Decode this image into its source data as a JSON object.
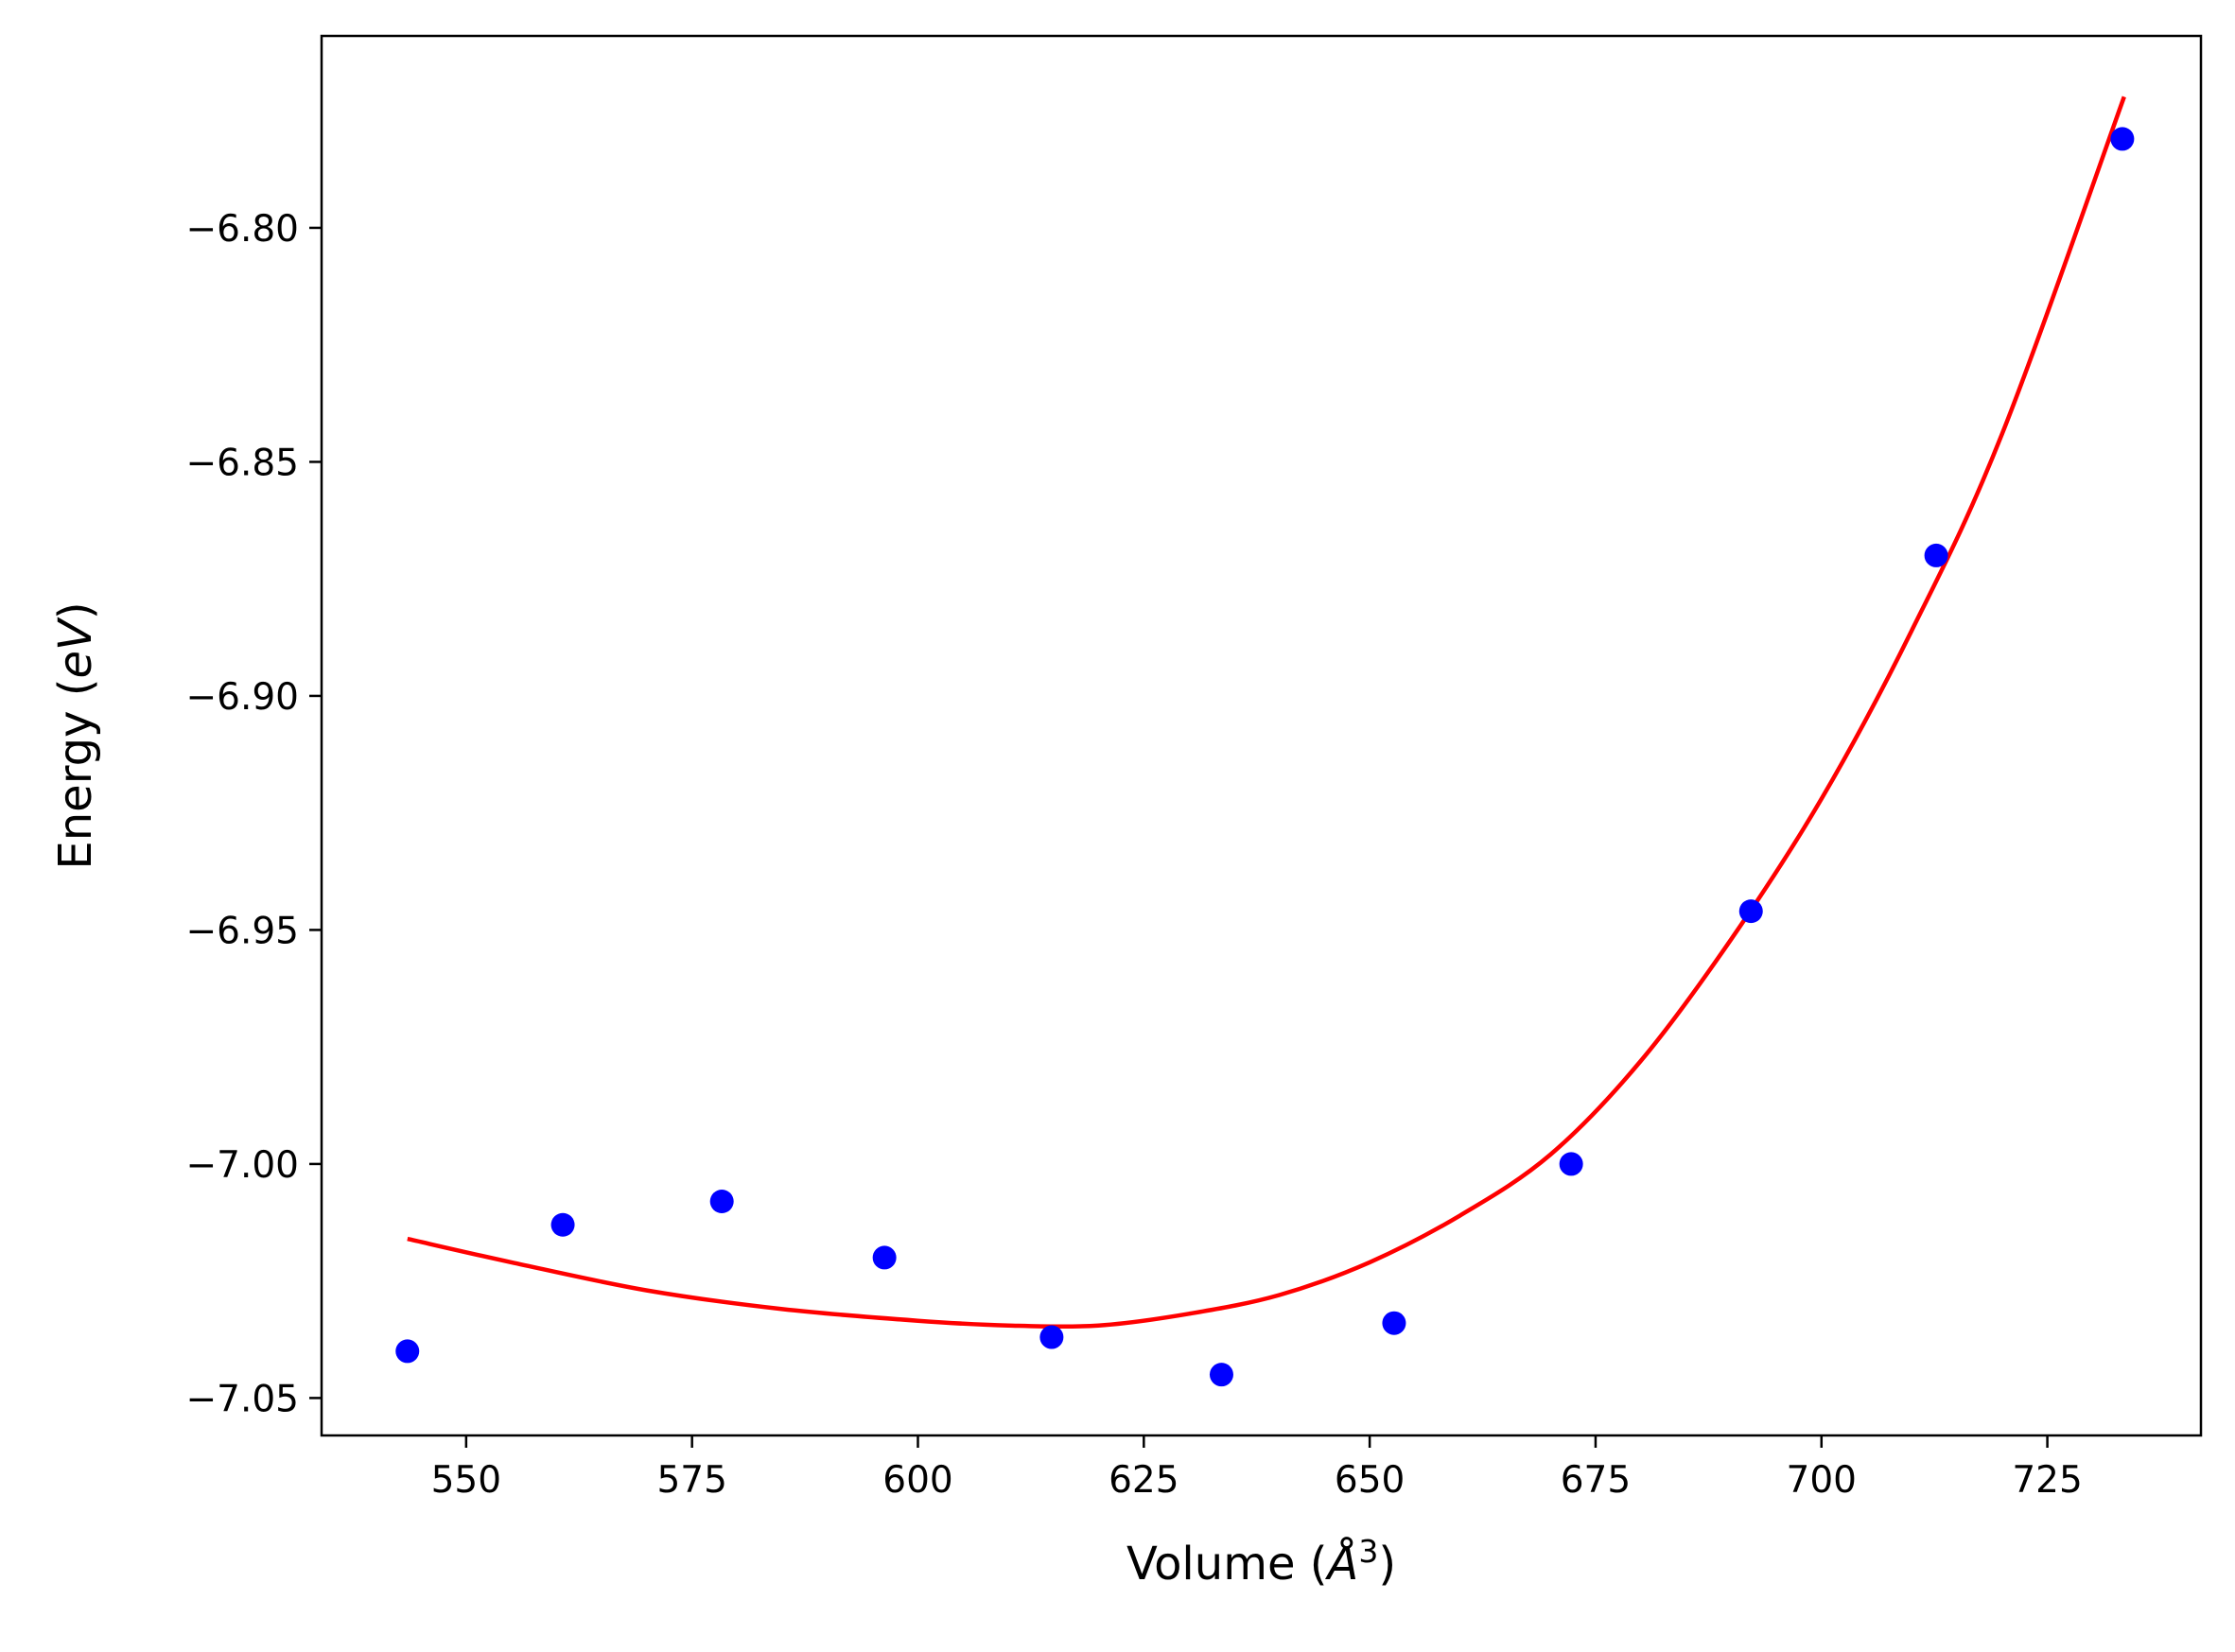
{
  "chart_data": {
    "type": "scatter",
    "xlabel": "Volume (Å³)",
    "xlabel_parts": {
      "prefix": "Volume (",
      "symbol": "Å",
      "exponent": "3",
      "suffix": ")"
    },
    "ylabel": "Energy (eV)",
    "ylabel_parts": {
      "prefix": "Energy (",
      "symbol": "eV",
      "suffix": ")"
    },
    "xlim": [
      534,
      742
    ],
    "ylim": [
      -7.058,
      -6.759
    ],
    "x_ticks": [
      550,
      575,
      600,
      625,
      650,
      675,
      700,
      725
    ],
    "x_tick_labels": [
      "550",
      "575",
      "600",
      "625",
      "650",
      "675",
      "700",
      "725"
    ],
    "y_ticks": [
      -6.8,
      -6.85,
      -6.9,
      -6.95,
      -7.0,
      -7.05
    ],
    "y_tick_labels": [
      "−6.80",
      "−6.85",
      "−6.90",
      "−6.95",
      "−7.00",
      "−7.05"
    ],
    "grid": false,
    "series": [
      {
        "kind": "scatter",
        "color": "#0000ff",
        "x": [
          543.5,
          560.7,
          578.3,
          596.3,
          614.8,
          633.6,
          652.7,
          672.3,
          692.2,
          712.7,
          733.3
        ],
        "y": [
          -7.04,
          -7.013,
          -7.008,
          -7.02,
          -7.037,
          -7.045,
          -7.034,
          -7.0,
          -6.946,
          -6.87,
          -6.781
        ]
      },
      {
        "kind": "line",
        "color": "#ff0000",
        "x": [
          543.5,
          555,
          570,
          585,
          600,
          610,
          620,
          630,
          640,
          650,
          660,
          670,
          680,
          690,
          700,
          710,
          720,
          733.5
        ],
        "y": [
          -7.016,
          -7.021,
          -7.027,
          -7.031,
          -7.0335,
          -7.0345,
          -7.0345,
          -7.032,
          -7.028,
          -7.021,
          -7.011,
          -6.998,
          -6.978,
          -6.952,
          -6.922,
          -6.886,
          -6.844,
          -6.772
        ]
      }
    ]
  }
}
